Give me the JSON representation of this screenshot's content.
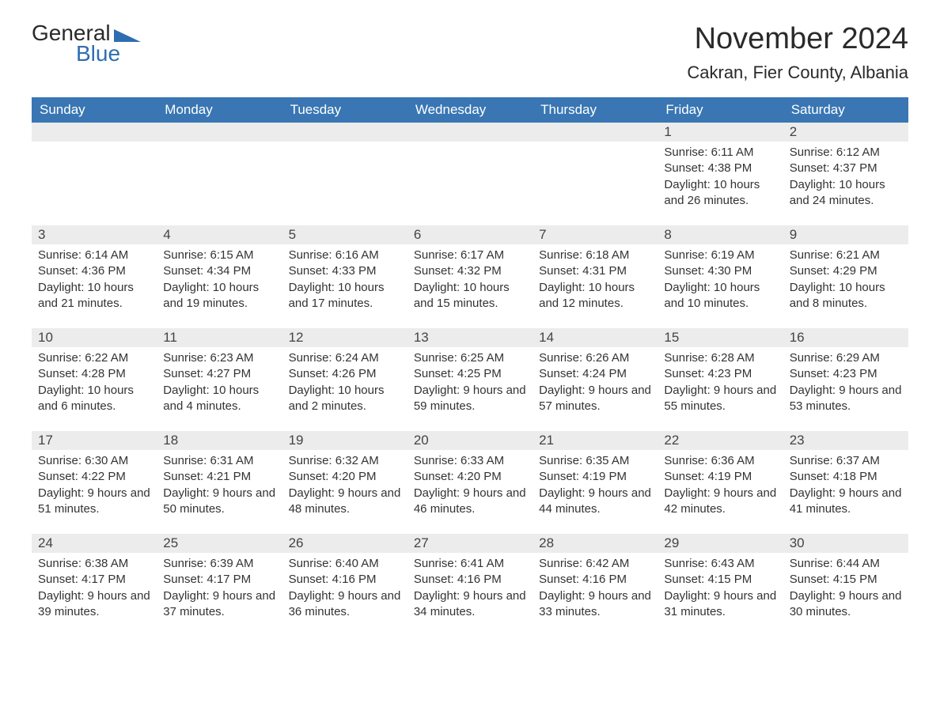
{
  "logo": {
    "text1": "General",
    "text2": "Blue"
  },
  "header": {
    "title": "November 2024",
    "location": "Cakran, Fier County, Albania"
  },
  "colors": {
    "headerBg": "#3976b3",
    "headerText": "#ffffff",
    "dayNumBg": "#ececec",
    "cellTopBorder": "#3976b3",
    "bodyText": "#333333",
    "logoBlue": "#2e6eb0",
    "background": "#ffffff"
  },
  "typography": {
    "title_fontsize": 38,
    "location_fontsize": 22,
    "weekday_fontsize": 17,
    "daynum_fontsize": 17,
    "body_fontsize": 15,
    "font_family": "Arial"
  },
  "layout": {
    "columns": 7,
    "rows": 5,
    "start_weekday": "Sunday",
    "first_day_column_index": 5
  },
  "weekdays": [
    "Sunday",
    "Monday",
    "Tuesday",
    "Wednesday",
    "Thursday",
    "Friday",
    "Saturday"
  ],
  "days": [
    {
      "n": 1,
      "sunrise": "6:11 AM",
      "sunset": "4:38 PM",
      "daylight": "10 hours and 26 minutes."
    },
    {
      "n": 2,
      "sunrise": "6:12 AM",
      "sunset": "4:37 PM",
      "daylight": "10 hours and 24 minutes."
    },
    {
      "n": 3,
      "sunrise": "6:14 AM",
      "sunset": "4:36 PM",
      "daylight": "10 hours and 21 minutes."
    },
    {
      "n": 4,
      "sunrise": "6:15 AM",
      "sunset": "4:34 PM",
      "daylight": "10 hours and 19 minutes."
    },
    {
      "n": 5,
      "sunrise": "6:16 AM",
      "sunset": "4:33 PM",
      "daylight": "10 hours and 17 minutes."
    },
    {
      "n": 6,
      "sunrise": "6:17 AM",
      "sunset": "4:32 PM",
      "daylight": "10 hours and 15 minutes."
    },
    {
      "n": 7,
      "sunrise": "6:18 AM",
      "sunset": "4:31 PM",
      "daylight": "10 hours and 12 minutes."
    },
    {
      "n": 8,
      "sunrise": "6:19 AM",
      "sunset": "4:30 PM",
      "daylight": "10 hours and 10 minutes."
    },
    {
      "n": 9,
      "sunrise": "6:21 AM",
      "sunset": "4:29 PM",
      "daylight": "10 hours and 8 minutes."
    },
    {
      "n": 10,
      "sunrise": "6:22 AM",
      "sunset": "4:28 PM",
      "daylight": "10 hours and 6 minutes."
    },
    {
      "n": 11,
      "sunrise": "6:23 AM",
      "sunset": "4:27 PM",
      "daylight": "10 hours and 4 minutes."
    },
    {
      "n": 12,
      "sunrise": "6:24 AM",
      "sunset": "4:26 PM",
      "daylight": "10 hours and 2 minutes."
    },
    {
      "n": 13,
      "sunrise": "6:25 AM",
      "sunset": "4:25 PM",
      "daylight": "9 hours and 59 minutes."
    },
    {
      "n": 14,
      "sunrise": "6:26 AM",
      "sunset": "4:24 PM",
      "daylight": "9 hours and 57 minutes."
    },
    {
      "n": 15,
      "sunrise": "6:28 AM",
      "sunset": "4:23 PM",
      "daylight": "9 hours and 55 minutes."
    },
    {
      "n": 16,
      "sunrise": "6:29 AM",
      "sunset": "4:23 PM",
      "daylight": "9 hours and 53 minutes."
    },
    {
      "n": 17,
      "sunrise": "6:30 AM",
      "sunset": "4:22 PM",
      "daylight": "9 hours and 51 minutes."
    },
    {
      "n": 18,
      "sunrise": "6:31 AM",
      "sunset": "4:21 PM",
      "daylight": "9 hours and 50 minutes."
    },
    {
      "n": 19,
      "sunrise": "6:32 AM",
      "sunset": "4:20 PM",
      "daylight": "9 hours and 48 minutes."
    },
    {
      "n": 20,
      "sunrise": "6:33 AM",
      "sunset": "4:20 PM",
      "daylight": "9 hours and 46 minutes."
    },
    {
      "n": 21,
      "sunrise": "6:35 AM",
      "sunset": "4:19 PM",
      "daylight": "9 hours and 44 minutes."
    },
    {
      "n": 22,
      "sunrise": "6:36 AM",
      "sunset": "4:19 PM",
      "daylight": "9 hours and 42 minutes."
    },
    {
      "n": 23,
      "sunrise": "6:37 AM",
      "sunset": "4:18 PM",
      "daylight": "9 hours and 41 minutes."
    },
    {
      "n": 24,
      "sunrise": "6:38 AM",
      "sunset": "4:17 PM",
      "daylight": "9 hours and 39 minutes."
    },
    {
      "n": 25,
      "sunrise": "6:39 AM",
      "sunset": "4:17 PM",
      "daylight": "9 hours and 37 minutes."
    },
    {
      "n": 26,
      "sunrise": "6:40 AM",
      "sunset": "4:16 PM",
      "daylight": "9 hours and 36 minutes."
    },
    {
      "n": 27,
      "sunrise": "6:41 AM",
      "sunset": "4:16 PM",
      "daylight": "9 hours and 34 minutes."
    },
    {
      "n": 28,
      "sunrise": "6:42 AM",
      "sunset": "4:16 PM",
      "daylight": "9 hours and 33 minutes."
    },
    {
      "n": 29,
      "sunrise": "6:43 AM",
      "sunset": "4:15 PM",
      "daylight": "9 hours and 31 minutes."
    },
    {
      "n": 30,
      "sunrise": "6:44 AM",
      "sunset": "4:15 PM",
      "daylight": "9 hours and 30 minutes."
    }
  ],
  "labels": {
    "sunrise": "Sunrise:",
    "sunset": "Sunset:",
    "daylight": "Daylight:"
  }
}
